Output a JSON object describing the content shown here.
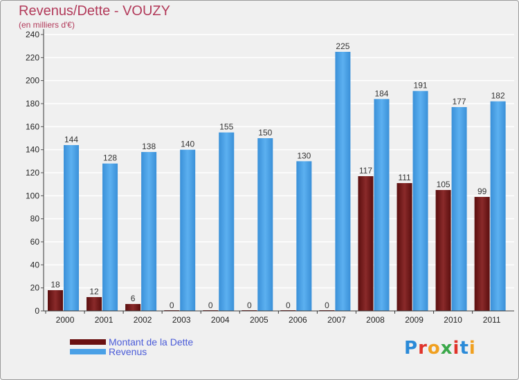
{
  "title": "Revenus/Dette - VOUZY",
  "subtitle": "(en milliers d'€)",
  "logo": "Proxiti",
  "legend": {
    "debt": "Montant de la Dette",
    "revenue": "Revenus"
  },
  "colors": {
    "debt": "#7a1c1c",
    "revenue": "#4aa0e6",
    "background": "#f0f0f0",
    "title": "#b23a5a",
    "legend_text": "#4a5bd8"
  },
  "chart_data": {
    "type": "bar",
    "title": "Revenus/Dette - VOUZY",
    "subtitle": "(en milliers d'€)",
    "categories": [
      "2000",
      "2001",
      "2002",
      "2003",
      "2004",
      "2005",
      "2006",
      "2007",
      "2008",
      "2009",
      "2010",
      "2011"
    ],
    "series": [
      {
        "name": "Montant de la Dette",
        "values": [
          18,
          12,
          6,
          0,
          0,
          0,
          0,
          0,
          117,
          111,
          105,
          99
        ]
      },
      {
        "name": "Revenus",
        "values": [
          144,
          128,
          138,
          140,
          155,
          150,
          130,
          225,
          184,
          191,
          177,
          182
        ]
      }
    ],
    "ylim": [
      0,
      240
    ],
    "yticks": [
      0,
      20,
      40,
      60,
      80,
      100,
      120,
      140,
      160,
      180,
      200,
      220,
      240
    ],
    "grid": true,
    "legend_position": "bottom-left"
  }
}
